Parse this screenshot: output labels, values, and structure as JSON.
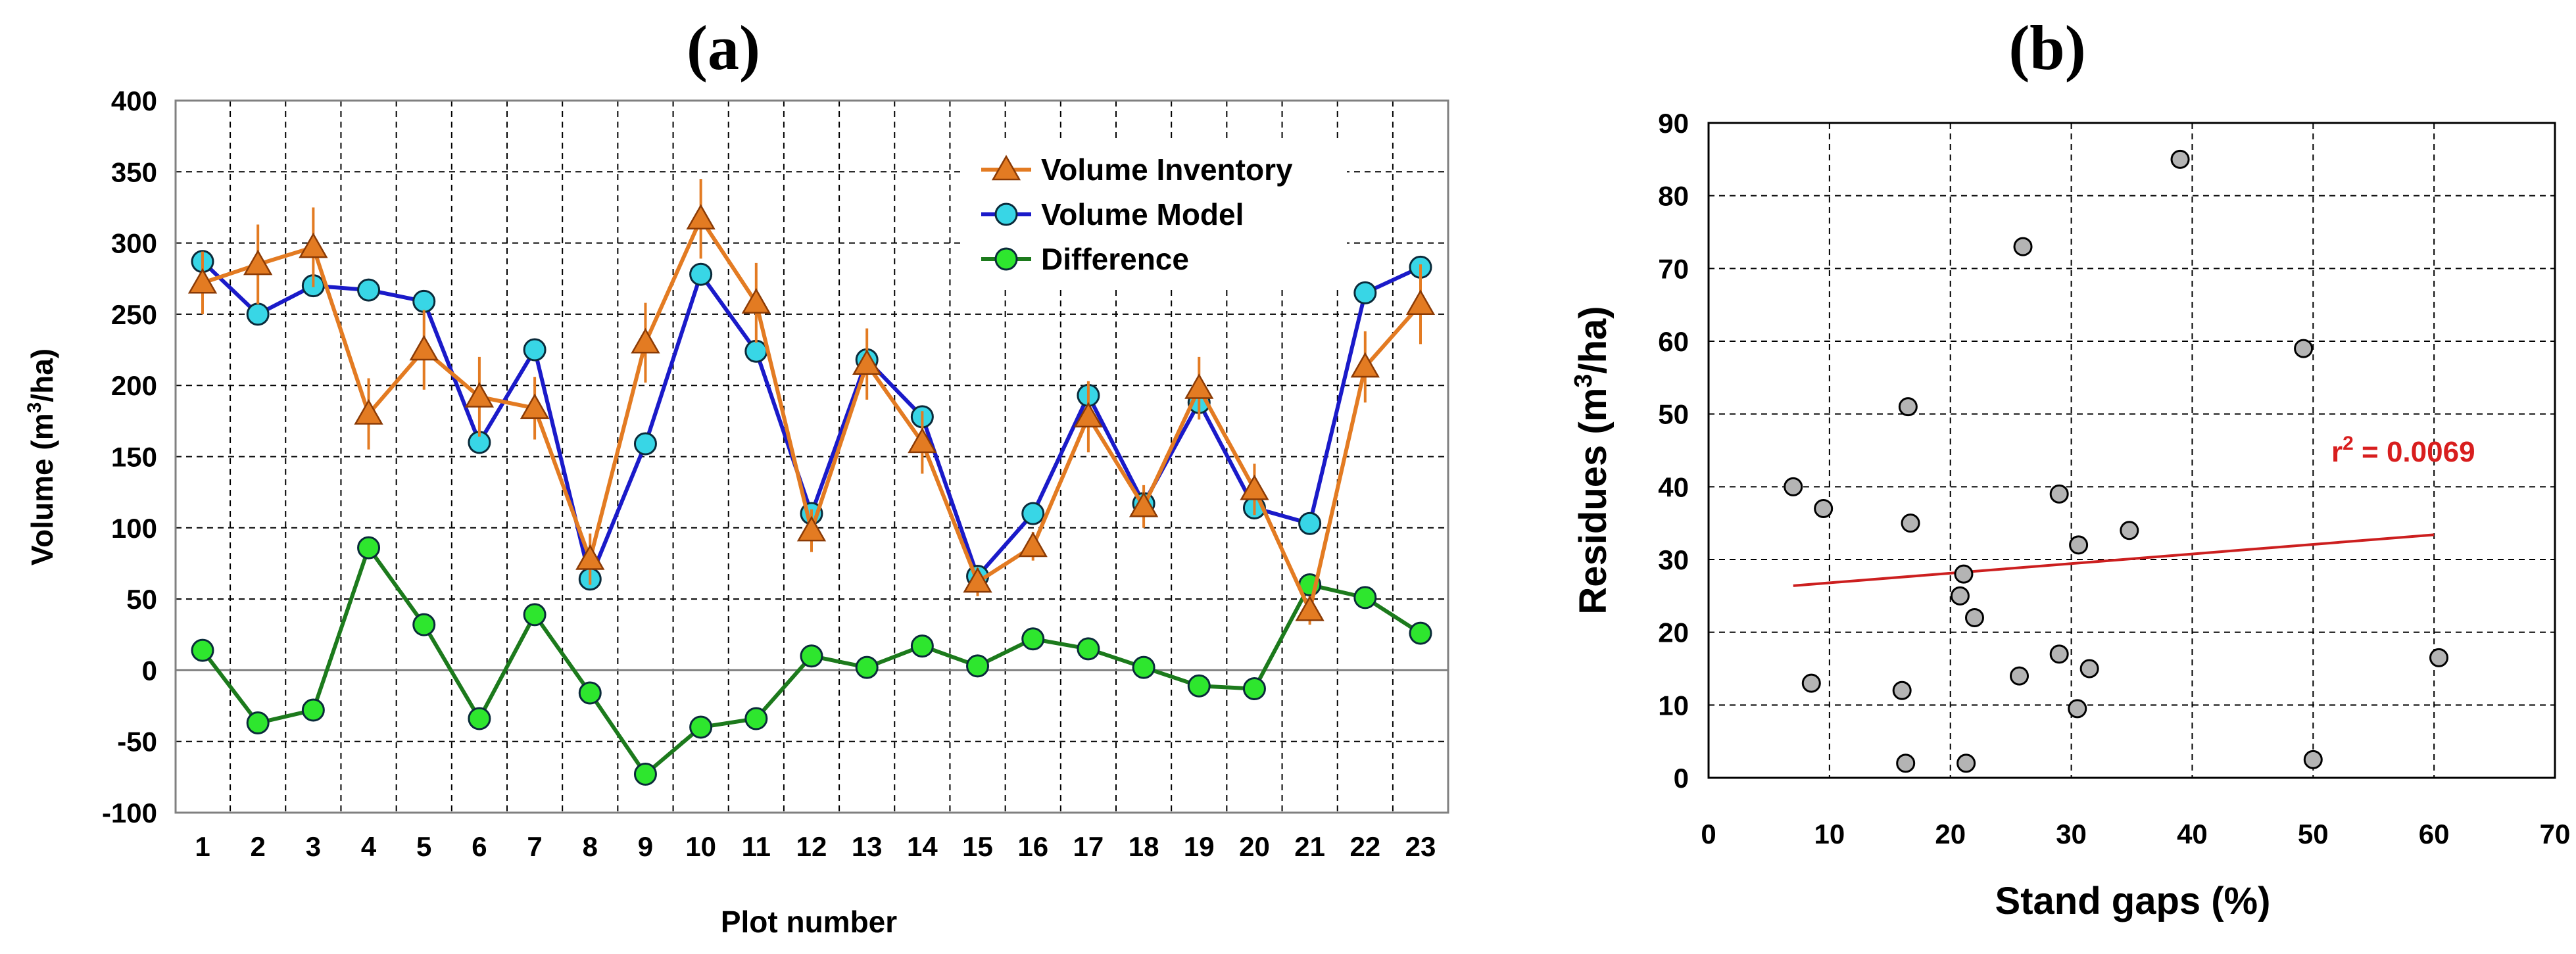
{
  "chart_data": [
    {
      "type": "line",
      "panel_label": "(a)",
      "xlabel": "Plot number",
      "ylabel_main": "Volume (m",
      "ylabel_sup": "3",
      "ylabel_end": "/ha)",
      "ylim": [
        -100,
        400
      ],
      "yticks": [
        -100,
        -50,
        0,
        50,
        100,
        150,
        200,
        250,
        300,
        350,
        400
      ],
      "x": [
        1,
        2,
        3,
        4,
        5,
        6,
        7,
        8,
        9,
        10,
        11,
        12,
        13,
        14,
        15,
        16,
        17,
        18,
        19,
        20,
        21,
        22,
        23
      ],
      "legend_position": "top-right",
      "series": [
        {
          "name": "Volume Inventory",
          "color": "#e37b22",
          "marker": "triangle",
          "marker_fill": "#e37b22",
          "values": [
            272,
            285,
            297,
            180,
            225,
            192,
            184,
            78,
            230,
            317,
            258,
            98,
            215,
            160,
            62,
            87,
            178,
            115,
            198,
            127,
            42,
            213,
            257
          ],
          "error": [
            22,
            28,
            28,
            25,
            28,
            28,
            22,
            18,
            28,
            28,
            28,
            15,
            25,
            22,
            10,
            10,
            25,
            15,
            22,
            18,
            10,
            25,
            28
          ]
        },
        {
          "name": "Volume Model",
          "color": "#1a1ac9",
          "marker": "circle",
          "marker_fill": "#38d6e6",
          "values": [
            287,
            250,
            270,
            267,
            259,
            160,
            225,
            64,
            159,
            278,
            224,
            110,
            218,
            178,
            66,
            110,
            193,
            117,
            188,
            114,
            103,
            265,
            283
          ]
        },
        {
          "name": "Difference",
          "color": "#1c7a1c",
          "marker": "circle",
          "marker_fill": "#2ee62e",
          "values": [
            14,
            -37,
            -28,
            86,
            32,
            -34,
            39,
            -16,
            -73,
            -40,
            -34,
            10,
            2,
            17,
            3,
            22,
            15,
            2,
            -11,
            -13,
            60,
            51,
            26
          ]
        }
      ]
    },
    {
      "type": "scatter",
      "panel_label": "(b)",
      "xlabel": "Stand gaps (%)",
      "ylabel_main": "Residues (m",
      "ylabel_sup": "3",
      "ylabel_end": "/ha)",
      "xlim": [
        0,
        70
      ],
      "ylim": [
        0,
        90
      ],
      "xticks": [
        0,
        10,
        20,
        30,
        40,
        50,
        60,
        70
      ],
      "yticks": [
        0,
        10,
        20,
        30,
        40,
        50,
        60,
        70,
        80,
        90
      ],
      "points": [
        [
          7,
          40
        ],
        [
          8.5,
          13
        ],
        [
          9.5,
          37
        ],
        [
          16,
          12
        ],
        [
          16.3,
          2
        ],
        [
          16.5,
          51
        ],
        [
          16.7,
          35
        ],
        [
          20.8,
          25
        ],
        [
          21.1,
          28
        ],
        [
          21.3,
          2
        ],
        [
          22,
          22
        ],
        [
          25.7,
          14
        ],
        [
          26,
          73
        ],
        [
          29,
          39
        ],
        [
          29,
          17
        ],
        [
          30.5,
          9.5
        ],
        [
          30.6,
          32
        ],
        [
          31.5,
          15
        ],
        [
          34.8,
          34
        ],
        [
          39,
          85
        ],
        [
          49.2,
          59
        ],
        [
          50,
          2.5
        ],
        [
          60.4,
          16.5
        ]
      ],
      "point_color": "#b4b4b4",
      "trendline": {
        "x": [
          7,
          60
        ],
        "y": [
          26.4,
          33.4
        ],
        "color": "#cc1f1f"
      },
      "annotation_main": "r",
      "annotation_sup": "2",
      "annotation_end": " = 0.0069"
    }
  ]
}
